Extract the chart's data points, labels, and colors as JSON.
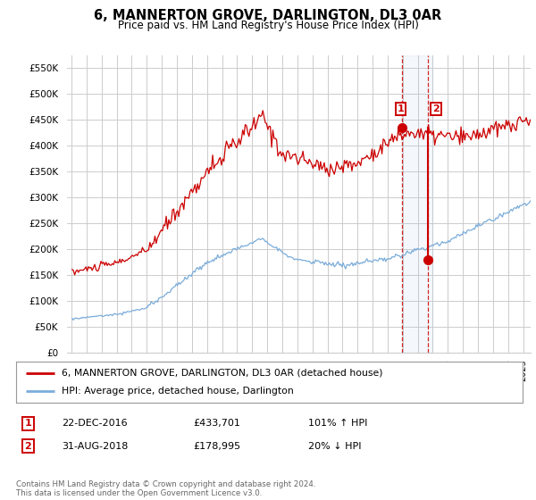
{
  "title": "6, MANNERTON GROVE, DARLINGTON, DL3 0AR",
  "subtitle": "Price paid vs. HM Land Registry's House Price Index (HPI)",
  "ylabel_vals": [
    "£0",
    "£50K",
    "£100K",
    "£150K",
    "£200K",
    "£250K",
    "£300K",
    "£350K",
    "£400K",
    "£450K",
    "£500K",
    "£550K"
  ],
  "ylim": [
    0,
    575000
  ],
  "yticks": [
    0,
    50000,
    100000,
    150000,
    200000,
    250000,
    300000,
    350000,
    400000,
    450000,
    500000,
    550000
  ],
  "xlim_start": 1994.7,
  "xlim_end": 2025.5,
  "marker1_x": 2016.97,
  "marker1_y": 433701,
  "marker2_x": 2018.67,
  "marker2_y": 178995,
  "legend_label1": "6, MANNERTON GROVE, DARLINGTON, DL3 0AR (detached house)",
  "legend_label2": "HPI: Average price, detached house, Darlington",
  "table_row1_num": "1",
  "table_row1_date": "22-DEC-2016",
  "table_row1_price": "£433,701",
  "table_row1_hpi": "101% ↑ HPI",
  "table_row2_num": "2",
  "table_row2_date": "31-AUG-2018",
  "table_row2_price": "£178,995",
  "table_row2_hpi": "20% ↓ HPI",
  "footer": "Contains HM Land Registry data © Crown copyright and database right 2024.\nThis data is licensed under the Open Government Licence v3.0.",
  "red_color": "#cc0000",
  "blue_color": "#7aacda",
  "bg_color": "#ffffff",
  "grid_color": "#cccccc",
  "highlight_bg": "#ddeeff"
}
